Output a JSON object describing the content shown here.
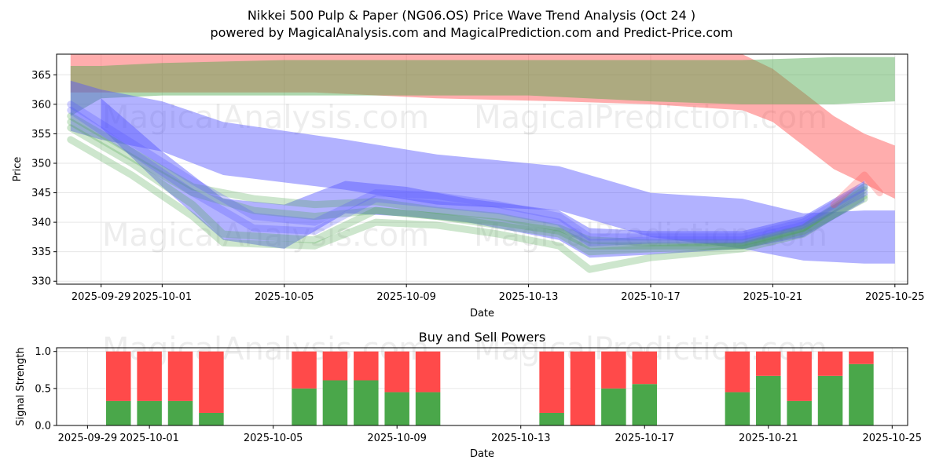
{
  "title_line1": "Nikkei 500 Pulp & Paper (NG06.OS) Price Wave Trend Analysis (Oct 24 )",
  "title_line2": "powered by MagicalAnalysis.com and MagicalPrediction.com and Predict-Price.com",
  "watermarks": [
    "MagicalAnalysis.com",
    "MagicalPrediction.com"
  ],
  "colors": {
    "red": "#ff4a4a",
    "green": "#4aa74a",
    "blue": "#5555ff",
    "grid": "#e6e6e6"
  },
  "chart_data": [
    {
      "type": "area",
      "title": "",
      "xlabel": "Date",
      "ylabel": "Price",
      "xlim": [
        "2025-09-27T13:00",
        "2025-10-25T10:00"
      ],
      "ylim": [
        329.5,
        368.5
      ],
      "grid": true,
      "x_ticks": [
        "2025-09-29",
        "2025-10-01",
        "2025-10-05",
        "2025-10-09",
        "2025-10-13",
        "2025-10-17",
        "2025-10-21",
        "2025-10-25"
      ],
      "y_ticks": [
        330,
        335,
        340,
        345,
        350,
        355,
        360,
        365
      ],
      "bands": [
        {
          "name": "red-upper",
          "color": "red",
          "x": [
            "2025-09-28",
            "2025-09-30",
            "2025-10-02",
            "2025-10-06",
            "2025-10-10",
            "2025-10-14",
            "2025-10-17",
            "2025-10-20",
            "2025-10-21",
            "2025-10-22",
            "2025-10-23",
            "2025-10-24",
            "2025-10-25"
          ],
          "upper": [
            368.5,
            368.5,
            368.5,
            368.5,
            368.5,
            368.5,
            368.5,
            368.5,
            366,
            362,
            358,
            355,
            353
          ],
          "lower": [
            362,
            362,
            362,
            362,
            361,
            360.5,
            360,
            359,
            357,
            353,
            349,
            346.5,
            344
          ]
        },
        {
          "name": "green-upper",
          "color": "green",
          "x": [
            "2025-09-28",
            "2025-09-29",
            "2025-10-01",
            "2025-10-05",
            "2025-10-09",
            "2025-10-13",
            "2025-10-17",
            "2025-10-20",
            "2025-10-23",
            "2025-10-25"
          ],
          "upper": [
            366.5,
            366.5,
            367,
            367.5,
            367.5,
            367.5,
            367.5,
            367.5,
            368,
            368
          ],
          "lower": [
            358,
            361,
            361.5,
            361.5,
            361.5,
            361.5,
            360.5,
            360,
            360,
            360.5
          ]
        },
        {
          "name": "blue-wide",
          "color": "blue",
          "x": [
            "2025-09-28",
            "2025-09-29",
            "2025-10-01",
            "2025-10-03",
            "2025-10-07",
            "2025-10-10",
            "2025-10-14",
            "2025-10-17",
            "2025-10-20",
            "2025-10-22",
            "2025-10-24",
            "2025-10-25"
          ],
          "upper": [
            364,
            362.5,
            360.5,
            357,
            354,
            351.5,
            349.5,
            345,
            344,
            341.5,
            342,
            342
          ],
          "lower": [
            355.5,
            354,
            352,
            348,
            345.5,
            343,
            342,
            337.5,
            335.5,
            333.5,
            333,
            333
          ]
        },
        {
          "name": "blue-mid",
          "color": "blue",
          "x": [
            "2025-09-29",
            "2025-10-01",
            "2025-10-03",
            "2025-10-05",
            "2025-10-07",
            "2025-10-09",
            "2025-10-11",
            "2025-10-14",
            "2025-10-15",
            "2025-10-17",
            "2025-10-20",
            "2025-10-22",
            "2025-10-24"
          ],
          "upper": [
            361,
            352,
            344,
            343,
            347,
            346,
            344,
            342,
            339,
            338.5,
            338.5,
            341,
            347
          ],
          "lower": [
            356,
            346,
            337,
            335.5,
            341.5,
            341,
            340,
            337,
            334,
            334.5,
            335.5,
            337.5,
            343.5
          ]
        }
      ],
      "wave_lines": [
        {
          "color": "green",
          "x": [
            "2025-09-28",
            "2025-09-30",
            "2025-10-02",
            "2025-10-04",
            "2025-10-06",
            "2025-10-08",
            "2025-10-10",
            "2025-10-12",
            "2025-10-14",
            "2025-10-15",
            "2025-10-17",
            "2025-10-20",
            "2025-10-22",
            "2025-10-24"
          ],
          "y": [
            358,
            352,
            346,
            344,
            343,
            343.5,
            342,
            341,
            339,
            337,
            336.5,
            336.5,
            339,
            345.5
          ]
        },
        {
          "color": "green",
          "x": [
            "2025-09-28",
            "2025-09-30",
            "2025-10-02",
            "2025-10-03",
            "2025-10-06",
            "2025-10-08",
            "2025-10-10",
            "2025-10-12",
            "2025-10-14",
            "2025-10-15",
            "2025-10-17",
            "2025-10-20",
            "2025-10-22",
            "2025-10-24"
          ],
          "y": [
            356,
            350,
            343,
            338,
            337,
            342,
            341,
            339.5,
            338,
            335,
            335.5,
            336,
            338.5,
            344
          ]
        },
        {
          "color": "green",
          "x": [
            "2025-09-28",
            "2025-09-30",
            "2025-10-02",
            "2025-10-03",
            "2025-10-06",
            "2025-10-08",
            "2025-10-10",
            "2025-10-12",
            "2025-10-14",
            "2025-10-15",
            "2025-10-17",
            "2025-10-20",
            "2025-10-22",
            "2025-10-24"
          ],
          "y": [
            354,
            348,
            341,
            336.5,
            336,
            340,
            339.5,
            338,
            336,
            332,
            334,
            335.5,
            338,
            344.5
          ]
        },
        {
          "color": "green",
          "x": [
            "2025-09-28",
            "2025-09-30",
            "2025-10-02",
            "2025-10-04",
            "2025-10-06",
            "2025-10-08",
            "2025-10-10",
            "2025-10-12",
            "2025-10-14",
            "2025-10-15",
            "2025-10-17",
            "2025-10-20",
            "2025-10-22",
            "2025-10-24"
          ],
          "y": [
            357,
            351,
            345,
            342,
            341,
            342,
            341,
            340,
            338.5,
            336,
            336,
            336,
            339,
            346
          ]
        },
        {
          "color": "blue",
          "x": [
            "2025-09-28",
            "2025-09-30",
            "2025-10-02",
            "2025-10-04",
            "2025-10-06",
            "2025-10-08",
            "2025-10-10",
            "2025-10-12",
            "2025-10-14",
            "2025-10-15",
            "2025-10-17",
            "2025-10-20",
            "2025-10-22",
            "2025-10-24"
          ],
          "y": [
            359,
            352,
            345,
            339,
            338.5,
            344,
            343,
            342,
            340,
            336.5,
            337,
            337,
            339.5,
            345
          ]
        },
        {
          "color": "blue",
          "x": [
            "2025-09-28",
            "2025-09-30",
            "2025-10-02",
            "2025-10-04",
            "2025-10-06",
            "2025-10-08",
            "2025-10-10",
            "2025-10-12",
            "2025-10-14",
            "2025-10-15",
            "2025-10-17",
            "2025-10-20",
            "2025-10-22",
            "2025-10-24"
          ],
          "y": [
            360,
            353.5,
            347,
            341,
            340,
            345,
            344.5,
            343,
            341,
            337.5,
            337.5,
            337.5,
            340,
            346
          ]
        },
        {
          "color": "red",
          "x": [
            "2025-10-23",
            "2025-10-24",
            "2025-10-24T12:00"
          ],
          "y": [
            343,
            348,
            345
          ]
        }
      ]
    },
    {
      "type": "bar",
      "title": "Buy and Sell Powers",
      "xlabel": "Date",
      "ylabel": "Signal Strength",
      "ylim": [
        0,
        1.05
      ],
      "grid": true,
      "x_ticks": [
        "2025-09-29",
        "2025-10-01",
        "2025-10-05",
        "2025-10-09",
        "2025-10-13",
        "2025-10-17",
        "2025-10-21",
        "2025-10-25"
      ],
      "y_ticks": [
        "0.0",
        "0.5",
        "1.0"
      ],
      "dates": [
        "2025-09-30",
        "2025-10-01",
        "2025-10-02",
        "2025-10-03",
        "2025-10-06",
        "2025-10-07",
        "2025-10-08",
        "2025-10-09",
        "2025-10-10",
        "2025-10-14",
        "2025-10-15",
        "2025-10-16",
        "2025-10-17",
        "2025-10-20",
        "2025-10-21",
        "2025-10-22",
        "2025-10-23",
        "2025-10-24"
      ],
      "series": [
        {
          "name": "Buy",
          "color": "green",
          "values": [
            0.33,
            0.33,
            0.33,
            0.17,
            0.5,
            0.61,
            0.61,
            0.45,
            0.45,
            0.17,
            0.0,
            0.5,
            0.56,
            0.45,
            0.67,
            0.33,
            0.67,
            0.83
          ]
        },
        {
          "name": "Sell",
          "color": "red",
          "values": [
            0.67,
            0.67,
            0.67,
            0.83,
            0.5,
            0.39,
            0.39,
            0.55,
            0.55,
            0.83,
            1.0,
            0.5,
            0.44,
            0.55,
            0.33,
            0.67,
            0.33,
            0.17
          ]
        }
      ]
    }
  ]
}
